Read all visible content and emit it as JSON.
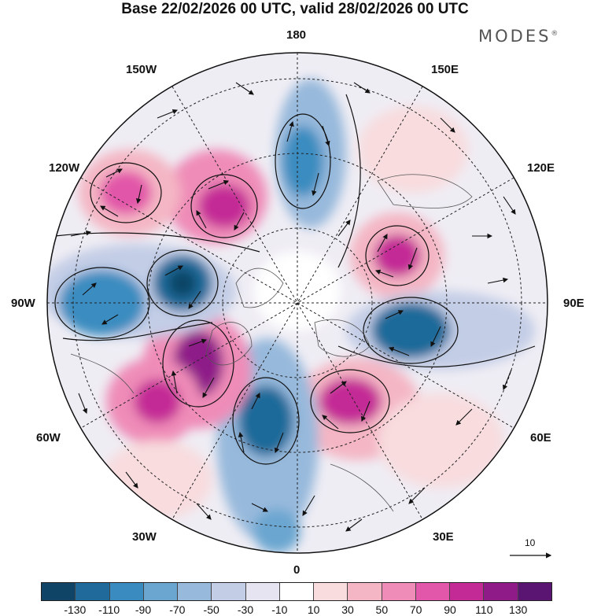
{
  "title": "Base 22/02/2026 00 UTC, valid 28/02/2026 00 UTC",
  "brand": "MODES",
  "brand_mark": "®",
  "longitudes": {
    "n180": "180",
    "w150": "150W",
    "e150": "150E",
    "w120": "120W",
    "e120": "120E",
    "w90": "90W",
    "e90": "90E",
    "w60": "60W",
    "e60": "60E",
    "w30": "30W",
    "e30": "30E",
    "s0": "0"
  },
  "vector_reference": {
    "label": "10"
  },
  "colorbar": {
    "colors": [
      "#0f4466",
      "#1f6a9a",
      "#3a8cc0",
      "#6aa6d0",
      "#97b9dc",
      "#c3cde6",
      "#e6e4f0",
      "#ffffff",
      "#f8dcde",
      "#f4b6c4",
      "#ef8cb8",
      "#e257a9",
      "#c42a96",
      "#8e1b88",
      "#5a1572"
    ],
    "ticks": [
      "-130",
      "-110",
      "-90",
      "-70",
      "-50",
      "-30",
      "-10",
      "10",
      "30",
      "50",
      "70",
      "90",
      "110",
      "130"
    ]
  },
  "anomaly_field": [
    {
      "name": "positive-anomaly-150w",
      "value": 110,
      "color": "#c42a96"
    },
    {
      "name": "positive-anomaly-120w",
      "value": 70,
      "color": "#ef8cb8"
    },
    {
      "name": "negative-anomaly-north-pacific",
      "value": -70,
      "color": "#3a8cc0"
    },
    {
      "name": "positive-anomaly-east-asia",
      "value": 50,
      "color": "#f4b6c4"
    },
    {
      "name": "positive-anomaly-siberia",
      "value": 90,
      "color": "#c42a96"
    },
    {
      "name": "negative-anomaly-central-asia",
      "value": -110,
      "color": "#1f6a9a"
    },
    {
      "name": "positive-anomaly-europe",
      "value": 110,
      "color": "#c42a96"
    },
    {
      "name": "negative-anomaly-north-atlantic",
      "value": -110,
      "color": "#1f6a9a"
    },
    {
      "name": "positive-anomaly-greenland",
      "value": 130,
      "color": "#8e1b88"
    },
    {
      "name": "positive-anomaly-atlantic-60w",
      "value": 90,
      "color": "#e257a9"
    },
    {
      "name": "negative-anomaly-canada",
      "value": -130,
      "color": "#0f4466"
    },
    {
      "name": "negative-anomaly-alaska-west",
      "value": -110,
      "color": "#1f6a9a"
    }
  ]
}
